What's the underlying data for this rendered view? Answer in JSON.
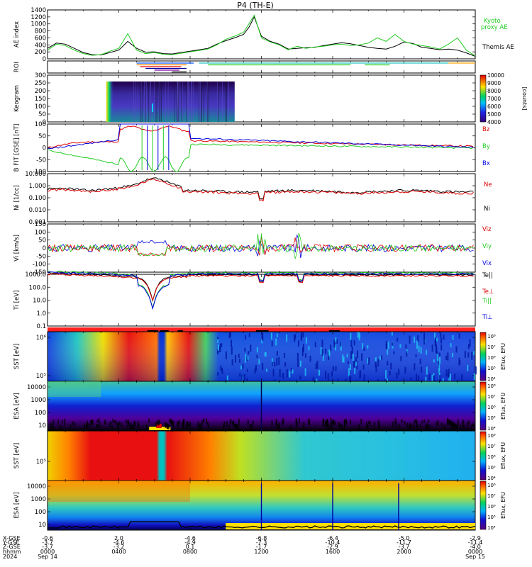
{
  "chart_data": {
    "type": "line",
    "title": "P4 (TH-E)",
    "x_axis": {
      "tick_labels": [
        "0000",
        "0400",
        "0800",
        "1200",
        "1600",
        "2000",
        "0000"
      ],
      "date_labels": [
        "Sep 14",
        "Sep 15"
      ],
      "year": "2024",
      "row_labels": [
        "X-GSE",
        "Y-GSE",
        "Z-GSE",
        "hhmm",
        "2024"
      ],
      "position_rows": [
        [
          "-0.6",
          "2.0",
          "-4.6",
          "-6.8",
          "-6.4",
          "-5.0",
          "-2.9"
        ],
        [
          "-3.7",
          "-4.6",
          "-4.9",
          "-7.3",
          "-10.4",
          "-11.7",
          "-11.4"
        ],
        [
          "-3.7",
          "-3.2",
          "0.1",
          "-1.7",
          "-2.9",
          "-3.7",
          "-4.0"
        ]
      ]
    },
    "panels": [
      {
        "id": "ae",
        "ylabel": "AE index",
        "yticks": [
          "0",
          "200",
          "400",
          "600",
          "800",
          "1000",
          "1200",
          "1400"
        ],
        "ylim": [
          0,
          1400
        ],
        "series": [
          {
            "name": "Themis AE",
            "color": "#000000",
            "x": [
              0,
              0.5,
              1,
              1.5,
              2,
              2.5,
              3,
              3.5,
              4,
              4.5,
              5,
              5.5,
              6,
              6.5,
              7,
              7.5,
              8,
              8.5,
              9,
              9.5,
              10,
              10.5,
              11,
              11.3,
              11.6,
              12,
              12.5,
              13,
              13.5,
              14,
              14.5,
              15,
              15.5,
              16,
              16.5,
              17,
              17.5,
              18,
              18.5,
              19,
              19.5,
              20,
              20.5,
              21,
              21.5,
              22,
              22.5,
              23,
              23.5,
              24
            ],
            "values": [
              300,
              450,
              420,
              300,
              180,
              120,
              110,
              180,
              250,
              500,
              300,
              190,
              200,
              150,
              140,
              180,
              220,
              260,
              300,
              420,
              520,
              600,
              700,
              900,
              1200,
              650,
              500,
              420,
              280,
              300,
              320,
              330,
              380,
              420,
              460,
              430,
              380,
              330,
              300,
              280,
              360,
              480,
              440,
              330,
              300,
              260,
              280,
              250,
              170,
              70
            ]
          },
          {
            "name": "Kyoto proxy AE",
            "color": "#22cc22",
            "x": [
              0,
              0.5,
              1,
              1.5,
              2,
              2.5,
              3,
              3.5,
              4,
              4.5,
              5,
              5.5,
              6,
              6.5,
              7,
              7.5,
              8,
              8.5,
              9,
              9.5,
              10,
              10.5,
              11,
              11.3,
              11.6,
              12,
              12.5,
              13,
              13.5,
              14,
              14.5,
              15,
              15.5,
              16,
              16.5,
              17,
              17.5,
              18,
              18.5,
              19,
              19.5,
              20,
              20.5,
              21,
              21.5,
              22,
              22.5,
              23,
              23.5,
              24
            ],
            "values": [
              250,
              420,
              380,
              250,
              150,
              100,
              120,
              220,
              300,
              720,
              250,
              150,
              180,
              130,
              120,
              160,
              200,
              240,
              280,
              400,
              560,
              650,
              760,
              1000,
              1250,
              600,
              480,
              400,
              260,
              360,
              300,
              340,
              360,
              400,
              420,
              380,
              400,
              450,
              600,
              500,
              700,
              500,
              420,
              380,
              340,
              280,
              420,
              600,
              250,
              80
            ]
          }
        ]
      },
      {
        "id": "roi",
        "ylabel": "ROI"
      },
      {
        "id": "keogram",
        "ylabel": "Keogram",
        "yticks": [
          "0",
          "50",
          "100",
          "150",
          "200",
          "250",
          "300"
        ],
        "colorbar": {
          "min": 4000,
          "max": 10000,
          "ticks": [
            "4000",
            "5000",
            "6000",
            "7000",
            "8000",
            "9000",
            "10000"
          ],
          "label": "[counts]"
        }
      },
      {
        "id": "bfield",
        "ylabel": "B FIT [GSE] [nT]",
        "yticks": [
          "-100",
          "-50",
          "0",
          "50",
          "100"
        ],
        "ylim": [
          -100,
          100
        ],
        "legend": [
          {
            "name": "Bz",
            "color": "#dd0000"
          },
          {
            "name": "By",
            "color": "#22cc22"
          },
          {
            "name": "Bx",
            "color": "#0000dd"
          }
        ]
      },
      {
        "id": "density",
        "ylabel": "Ni [1/cc]",
        "yticks": [
          "0.001",
          "0.010",
          "0.100",
          "1.000",
          "10.000"
        ],
        "ylim": [
          0.001,
          10
        ],
        "log": true,
        "legend": [
          {
            "name": "Ne",
            "color": "#dd0000"
          },
          {
            "name": "Ni",
            "color": "#000000"
          }
        ]
      },
      {
        "id": "velocity",
        "ylabel": "Vi [km/s]",
        "yticks": [
          "-150",
          "-100",
          "-50",
          "0",
          "50",
          "100",
          "150"
        ],
        "ylim": [
          -150,
          150
        ],
        "legend": [
          {
            "name": "Viz",
            "color": "#dd0000"
          },
          {
            "name": "Viy",
            "color": "#22cc22"
          },
          {
            "name": "Vix",
            "color": "#0000dd"
          }
        ]
      },
      {
        "id": "temperature",
        "ylabel": "Ti [eV]",
        "yticks": [
          "0.1",
          "1.0",
          "10.0",
          "100.0",
          "1000.0"
        ],
        "ylim": [
          0.1,
          1000
        ],
        "log": true,
        "legend": [
          {
            "name": "Te||",
            "color": "#000000"
          },
          {
            "name": "Te⊥",
            "color": "#dd0000"
          },
          {
            "name": "Ti||",
            "color": "#22cc22"
          },
          {
            "name": "Ti⊥",
            "color": "#0000dd"
          }
        ]
      },
      {
        "id": "flags"
      },
      {
        "id": "sst_e",
        "ylabel": "SST [eV]",
        "yticks": [
          "10⁵",
          "10⁶"
        ],
        "colorbar": {
          "ticks": [
            "10⁴",
            "10⁵",
            "10⁶",
            "10⁷",
            "10⁸"
          ],
          "label": "Eflux, EFU"
        }
      },
      {
        "id": "esa_e",
        "ylabel": "ESA [eV]",
        "yticks": [
          "10",
          "100",
          "1000",
          "10000"
        ],
        "colorbar": {
          "ticks": [
            "10⁴",
            "10⁵",
            "10⁶",
            "10⁷",
            "10⁸"
          ],
          "label": "Eflux, EFU"
        }
      },
      {
        "id": "sst_i",
        "ylabel": "SST [eV]",
        "yticks": [
          "10⁵"
        ],
        "colorbar": {
          "ticks": [
            "10⁴",
            "10⁵",
            "10⁶",
            "10⁷",
            "10⁸"
          ],
          "label": "Eflux, EFU"
        }
      },
      {
        "id": "esa_i",
        "ylabel": "ESA [eV]",
        "yticks": [
          "10",
          "100",
          "1000",
          "10000"
        ],
        "colorbar": {
          "ticks": [
            "10⁴",
            "10⁵",
            "10⁶",
            "10⁷",
            "10⁸"
          ],
          "label": "Eflux, EFU"
        }
      }
    ]
  }
}
